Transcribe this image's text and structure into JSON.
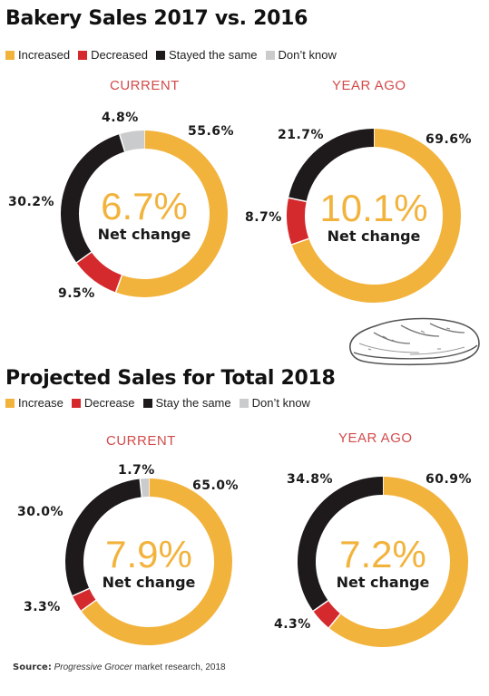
{
  "colors": {
    "increase": "#F2B33D",
    "decrease": "#D42A2E",
    "same": "#1E1A1C",
    "dont_know": "#C9CBCC",
    "panel_label": "#D24B4B",
    "center_pct": "#F2B33D"
  },
  "sections": [
    {
      "title": "Bakery Sales 2017 vs. 2016",
      "legend": [
        "Increased",
        "Decreased",
        "Stayed the same",
        "Don’t know"
      ]
    },
    {
      "title": "Projected Sales for Total 2018",
      "legend": [
        "Increase",
        "Decrease",
        "Stay the same",
        "Don’t know"
      ]
    }
  ],
  "chart_data": [
    {
      "type": "pie",
      "panel_label": "CURRENT",
      "center_value": "6.7%",
      "center_label": "Net change",
      "values": [
        55.6,
        9.5,
        30.2,
        4.8
      ],
      "value_labels": [
        "55.6%",
        "9.5%",
        "30.2%",
        "4.8%"
      ]
    },
    {
      "type": "pie",
      "panel_label": "YEAR AGO",
      "center_value": "10.1%",
      "center_label": "Net change",
      "values": [
        69.6,
        8.7,
        21.7
      ],
      "value_labels": [
        "69.6%",
        "8.7%",
        "21.7%"
      ]
    },
    {
      "type": "pie",
      "panel_label": "CURRENT",
      "center_value": "7.9%",
      "center_label": "Net change",
      "values": [
        65.0,
        3.3,
        30.0,
        1.7
      ],
      "value_labels": [
        "65.0%",
        "3.3%",
        "30.0%",
        "1.7%"
      ]
    },
    {
      "type": "pie",
      "panel_label": "YEAR AGO",
      "center_value": "7.2%",
      "center_label": "Net change",
      "values": [
        60.9,
        4.3,
        34.8
      ],
      "value_labels": [
        "60.9%",
        "4.3%",
        "34.8%"
      ]
    }
  ],
  "source": {
    "label": "Source:",
    "publication": "Progressive Grocer",
    "text": " market research, 2018"
  }
}
